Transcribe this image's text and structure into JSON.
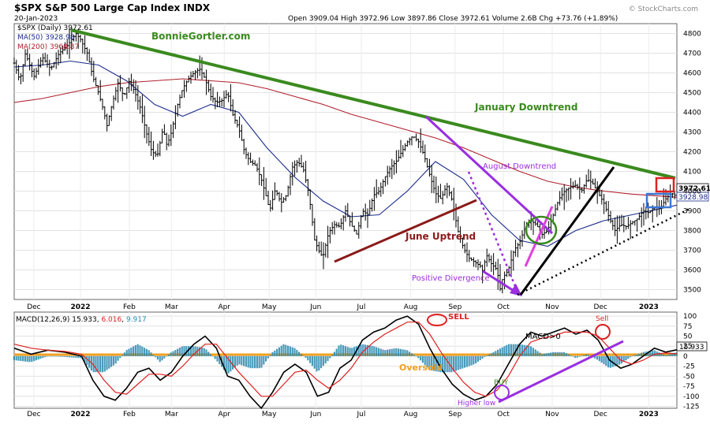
{
  "header": {
    "title": "$SPX S&P 500 Large Cap Index INDX",
    "date": "20-Jan-2023",
    "ohlc": "Open 3909.04 High 3972.96 Low 3897.86 Close 3972.61 Volume 2.6B Chg +73.76 (+1.89%)",
    "watermark": "© StockCharts.com"
  },
  "colors": {
    "price_bars": "#000000",
    "ma50": "#1c2c8c",
    "ma200": "#b0202c",
    "downtrend": "#3a8a1e",
    "june_uptrend": "#8b1a1a",
    "aug_downtrend": "#9a2ee0",
    "magenta": "#e040e0",
    "macd_line": "#000000",
    "signal_line": "#e02020",
    "histogram": "#2a8ab0",
    "oversold": "#f0a020",
    "callout_red": "#e02020",
    "callout_blue": "#3a78d8"
  },
  "legend": {
    "spx": "$SPX (Daily) 3972.61",
    "ma50": "MA(50) 3928.98",
    "ma200": "MA(200) 3968.87"
  },
  "annotations": {
    "site": "BonnieGortler.com",
    "january_downtrend": "January Downtrend",
    "august_downtrend": "August Downtrend",
    "june_uptrend": "June Uptrend",
    "positive_divergence": "Positive Divergence",
    "sell_left": "SELL",
    "sell_right": "Sell",
    "macd_pos": "MACD>0",
    "oversold": "Oversold",
    "buy": "BUY",
    "higher_low": "Higher low"
  },
  "price_tags": {
    "close": "3972.61",
    "ma50": "3928.98"
  },
  "macd_legend": {
    "label": "MACD(12,26,9)",
    "macd": "15.933",
    "signal": "6.016",
    "hist": "9.917"
  },
  "macd_tag": "15.933",
  "chart_data": [
    {
      "type": "candlestick",
      "title": "$SPX S&P 500 Large Cap Index INDX",
      "ylim": [
        3450,
        4850
      ],
      "yticks": [
        3500,
        3600,
        3700,
        3800,
        3900,
        4000,
        4100,
        4200,
        4300,
        4400,
        4500,
        4600,
        4700,
        4800
      ],
      "x_tick_labels": [
        "Dec",
        "2022",
        "Feb",
        "Mar",
        "Apr",
        "May",
        "Jun",
        "Jul",
        "Aug",
        "Sep",
        "Oct",
        "Nov",
        "Dec",
        "2023"
      ],
      "x_tick_pos": [
        0.035,
        0.118,
        0.205,
        0.28,
        0.374,
        0.454,
        0.537,
        0.618,
        0.706,
        0.785,
        0.871,
        0.958,
        1.044,
        1.13
      ],
      "price_anchors": [
        [
          0,
          4650
        ],
        [
          0.01,
          4560
        ],
        [
          0.02,
          4700
        ],
        [
          0.035,
          4580
        ],
        [
          0.05,
          4680
        ],
        [
          0.065,
          4620
        ],
        [
          0.08,
          4700
        ],
        [
          0.095,
          4740
        ],
        [
          0.11,
          4800
        ],
        [
          0.118,
          4770
        ],
        [
          0.13,
          4700
        ],
        [
          0.14,
          4580
        ],
        [
          0.15,
          4500
        ],
        [
          0.16,
          4400
        ],
        [
          0.165,
          4330
        ],
        [
          0.175,
          4450
        ],
        [
          0.185,
          4550
        ],
        [
          0.195,
          4480
        ],
        [
          0.205,
          4560
        ],
        [
          0.215,
          4500
        ],
        [
          0.225,
          4420
        ],
        [
          0.235,
          4300
        ],
        [
          0.245,
          4200
        ],
        [
          0.255,
          4180
        ],
        [
          0.265,
          4320
        ],
        [
          0.272,
          4230
        ],
        [
          0.28,
          4300
        ],
        [
          0.29,
          4430
        ],
        [
          0.3,
          4520
        ],
        [
          0.31,
          4570
        ],
        [
          0.32,
          4600
        ],
        [
          0.33,
          4620
        ],
        [
          0.34,
          4570
        ],
        [
          0.35,
          4480
        ],
        [
          0.36,
          4450
        ],
        [
          0.37,
          4460
        ],
        [
          0.38,
          4500
        ],
        [
          0.39,
          4380
        ],
        [
          0.4,
          4320
        ],
        [
          0.41,
          4200
        ],
        [
          0.42,
          4150
        ],
        [
          0.43,
          4130
        ],
        [
          0.44,
          4060
        ],
        [
          0.45,
          3960
        ],
        [
          0.455,
          3900
        ],
        [
          0.465,
          4010
        ],
        [
          0.475,
          3940
        ],
        [
          0.485,
          3980
        ],
        [
          0.495,
          4120
        ],
        [
          0.505,
          4150
        ],
        [
          0.515,
          4110
        ],
        [
          0.525,
          3980
        ],
        [
          0.535,
          3750
        ],
        [
          0.545,
          3680
        ],
        [
          0.55,
          3670
        ],
        [
          0.56,
          3790
        ],
        [
          0.57,
          3830
        ],
        [
          0.58,
          3820
        ],
        [
          0.59,
          3900
        ],
        [
          0.6,
          3830
        ],
        [
          0.61,
          3780
        ],
        [
          0.62,
          3900
        ],
        [
          0.63,
          3880
        ],
        [
          0.64,
          3980
        ],
        [
          0.65,
          4000
        ],
        [
          0.66,
          4070
        ],
        [
          0.67,
          4120
        ],
        [
          0.68,
          4150
        ],
        [
          0.69,
          4200
        ],
        [
          0.7,
          4250
        ],
        [
          0.71,
          4280
        ],
        [
          0.72,
          4250
        ],
        [
          0.73,
          4180
        ],
        [
          0.74,
          4080
        ],
        [
          0.75,
          3990
        ],
        [
          0.76,
          3960
        ],
        [
          0.77,
          4030
        ],
        [
          0.78,
          3950
        ],
        [
          0.79,
          3800
        ],
        [
          0.8,
          3710
        ],
        [
          0.81,
          3660
        ],
        [
          0.82,
          3640
        ],
        [
          0.83,
          3620
        ],
        [
          0.835,
          3590
        ],
        [
          0.84,
          3680
        ],
        [
          0.85,
          3630
        ],
        [
          0.86,
          3600
        ],
        [
          0.865,
          3500
        ],
        [
          0.87,
          3560
        ],
        [
          0.88,
          3600
        ],
        [
          0.89,
          3700
        ],
        [
          0.9,
          3740
        ],
        [
          0.91,
          3820
        ],
        [
          0.92,
          3850
        ],
        [
          0.93,
          3830
        ],
        [
          0.94,
          3780
        ],
        [
          0.95,
          3800
        ],
        [
          0.96,
          3880
        ],
        [
          0.97,
          3960
        ],
        [
          0.98,
          4000
        ],
        [
          0.99,
          4020
        ],
        [
          1.0,
          4030
        ],
        [
          1.01,
          4000
        ],
        [
          1.02,
          4060
        ],
        [
          1.03,
          4040
        ],
        [
          1.04,
          3990
        ],
        [
          1.05,
          3940
        ],
        [
          1.06,
          3860
        ],
        [
          1.07,
          3800
        ],
        [
          1.08,
          3830
        ],
        [
          1.09,
          3820
        ],
        [
          1.1,
          3840
        ],
        [
          1.11,
          3860
        ],
        [
          1.12,
          3900
        ],
        [
          1.13,
          3890
        ],
        [
          1.14,
          3920
        ],
        [
          1.15,
          3910
        ],
        [
          1.16,
          3960
        ],
        [
          1.17,
          3990
        ],
        [
          1.18,
          3972
        ]
      ],
      "ma50": [
        [
          0,
          4630
        ],
        [
          0.05,
          4640
        ],
        [
          0.1,
          4660
        ],
        [
          0.15,
          4640
        ],
        [
          0.2,
          4560
        ],
        [
          0.25,
          4440
        ],
        [
          0.3,
          4380
        ],
        [
          0.35,
          4440
        ],
        [
          0.4,
          4400
        ],
        [
          0.45,
          4220
        ],
        [
          0.5,
          4070
        ],
        [
          0.55,
          3950
        ],
        [
          0.6,
          3870
        ],
        [
          0.65,
          3880
        ],
        [
          0.7,
          4000
        ],
        [
          0.75,
          4150
        ],
        [
          0.8,
          4060
        ],
        [
          0.85,
          3880
        ],
        [
          0.9,
          3750
        ],
        [
          0.95,
          3720
        ],
        [
          1.0,
          3800
        ],
        [
          1.05,
          3850
        ],
        [
          1.1,
          3880
        ],
        [
          1.18,
          3928.98
        ]
      ],
      "ma200": [
        [
          0,
          4450
        ],
        [
          0.05,
          4470
        ],
        [
          0.1,
          4500
        ],
        [
          0.15,
          4530
        ],
        [
          0.2,
          4550
        ],
        [
          0.25,
          4560
        ],
        [
          0.3,
          4570
        ],
        [
          0.35,
          4560
        ],
        [
          0.4,
          4550
        ],
        [
          0.45,
          4520
        ],
        [
          0.5,
          4480
        ],
        [
          0.55,
          4440
        ],
        [
          0.6,
          4390
        ],
        [
          0.65,
          4350
        ],
        [
          0.7,
          4310
        ],
        [
          0.75,
          4270
        ],
        [
          0.8,
          4220
        ],
        [
          0.85,
          4160
        ],
        [
          0.9,
          4100
        ],
        [
          0.95,
          4050
        ],
        [
          1.0,
          4020
        ],
        [
          1.05,
          4000
        ],
        [
          1.1,
          3985
        ],
        [
          1.18,
          3968.87
        ]
      ]
    },
    {
      "type": "macd",
      "series_names": [
        "MACD(12,26,9)"
      ],
      "ylim": [
        -130,
        110
      ],
      "yticks": [
        -125,
        -100,
        -75,
        -50,
        -25,
        0,
        25,
        50,
        75,
        100
      ],
      "macd_line": [
        [
          0,
          20
        ],
        [
          0.03,
          5
        ],
        [
          0.06,
          15
        ],
        [
          0.09,
          10
        ],
        [
          0.12,
          0
        ],
        [
          0.14,
          -60
        ],
        [
          0.16,
          -100
        ],
        [
          0.18,
          -110
        ],
        [
          0.2,
          -80
        ],
        [
          0.22,
          -40
        ],
        [
          0.24,
          -30
        ],
        [
          0.26,
          -60
        ],
        [
          0.28,
          -40
        ],
        [
          0.3,
          0
        ],
        [
          0.32,
          30
        ],
        [
          0.34,
          50
        ],
        [
          0.36,
          20
        ],
        [
          0.38,
          -50
        ],
        [
          0.4,
          -60
        ],
        [
          0.42,
          -100
        ],
        [
          0.44,
          -130
        ],
        [
          0.46,
          -90
        ],
        [
          0.48,
          -40
        ],
        [
          0.5,
          -20
        ],
        [
          0.52,
          -40
        ],
        [
          0.54,
          -100
        ],
        [
          0.56,
          -90
        ],
        [
          0.58,
          -30
        ],
        [
          0.6,
          -10
        ],
        [
          0.62,
          40
        ],
        [
          0.64,
          60
        ],
        [
          0.66,
          70
        ],
        [
          0.68,
          90
        ],
        [
          0.7,
          100
        ],
        [
          0.72,
          80
        ],
        [
          0.74,
          20
        ],
        [
          0.76,
          -30
        ],
        [
          0.78,
          -70
        ],
        [
          0.8,
          -95
        ],
        [
          0.82,
          -110
        ],
        [
          0.84,
          -100
        ],
        [
          0.86,
          -70
        ],
        [
          0.88,
          -20
        ],
        [
          0.9,
          30
        ],
        [
          0.92,
          60
        ],
        [
          0.94,
          50
        ],
        [
          0.96,
          60
        ],
        [
          0.98,
          70
        ],
        [
          1.0,
          55
        ],
        [
          1.02,
          65
        ],
        [
          1.04,
          40
        ],
        [
          1.06,
          -10
        ],
        [
          1.08,
          -30
        ],
        [
          1.1,
          -20
        ],
        [
          1.12,
          0
        ],
        [
          1.14,
          20
        ],
        [
          1.16,
          10
        ],
        [
          1.18,
          15.933
        ]
      ],
      "signal_line": [
        [
          0,
          30
        ],
        [
          0.03,
          20
        ],
        [
          0.06,
          15
        ],
        [
          0.09,
          12
        ],
        [
          0.12,
          5
        ],
        [
          0.14,
          -20
        ],
        [
          0.16,
          -60
        ],
        [
          0.18,
          -90
        ],
        [
          0.2,
          -95
        ],
        [
          0.22,
          -70
        ],
        [
          0.24,
          -45
        ],
        [
          0.26,
          -45
        ],
        [
          0.28,
          -50
        ],
        [
          0.3,
          -25
        ],
        [
          0.32,
          5
        ],
        [
          0.34,
          30
        ],
        [
          0.36,
          30
        ],
        [
          0.38,
          -5
        ],
        [
          0.4,
          -40
        ],
        [
          0.42,
          -70
        ],
        [
          0.44,
          -100
        ],
        [
          0.46,
          -100
        ],
        [
          0.48,
          -70
        ],
        [
          0.5,
          -40
        ],
        [
          0.52,
          -35
        ],
        [
          0.54,
          -60
        ],
        [
          0.56,
          -80
        ],
        [
          0.58,
          -60
        ],
        [
          0.6,
          -30
        ],
        [
          0.62,
          10
        ],
        [
          0.64,
          35
        ],
        [
          0.66,
          55
        ],
        [
          0.68,
          70
        ],
        [
          0.7,
          85
        ],
        [
          0.72,
          85
        ],
        [
          0.74,
          55
        ],
        [
          0.76,
          10
        ],
        [
          0.78,
          -30
        ],
        [
          0.8,
          -65
        ],
        [
          0.82,
          -90
        ],
        [
          0.84,
          -100
        ],
        [
          0.86,
          -85
        ],
        [
          0.88,
          -50
        ],
        [
          0.9,
          0
        ],
        [
          0.92,
          35
        ],
        [
          0.94,
          45
        ],
        [
          0.96,
          50
        ],
        [
          0.98,
          60
        ],
        [
          1.0,
          60
        ],
        [
          1.02,
          60
        ],
        [
          1.04,
          50
        ],
        [
          1.06,
          20
        ],
        [
          1.08,
          -10
        ],
        [
          1.1,
          -20
        ],
        [
          1.12,
          -10
        ],
        [
          1.14,
          5
        ],
        [
          1.16,
          8
        ],
        [
          1.18,
          6.016
        ]
      ]
    }
  ]
}
